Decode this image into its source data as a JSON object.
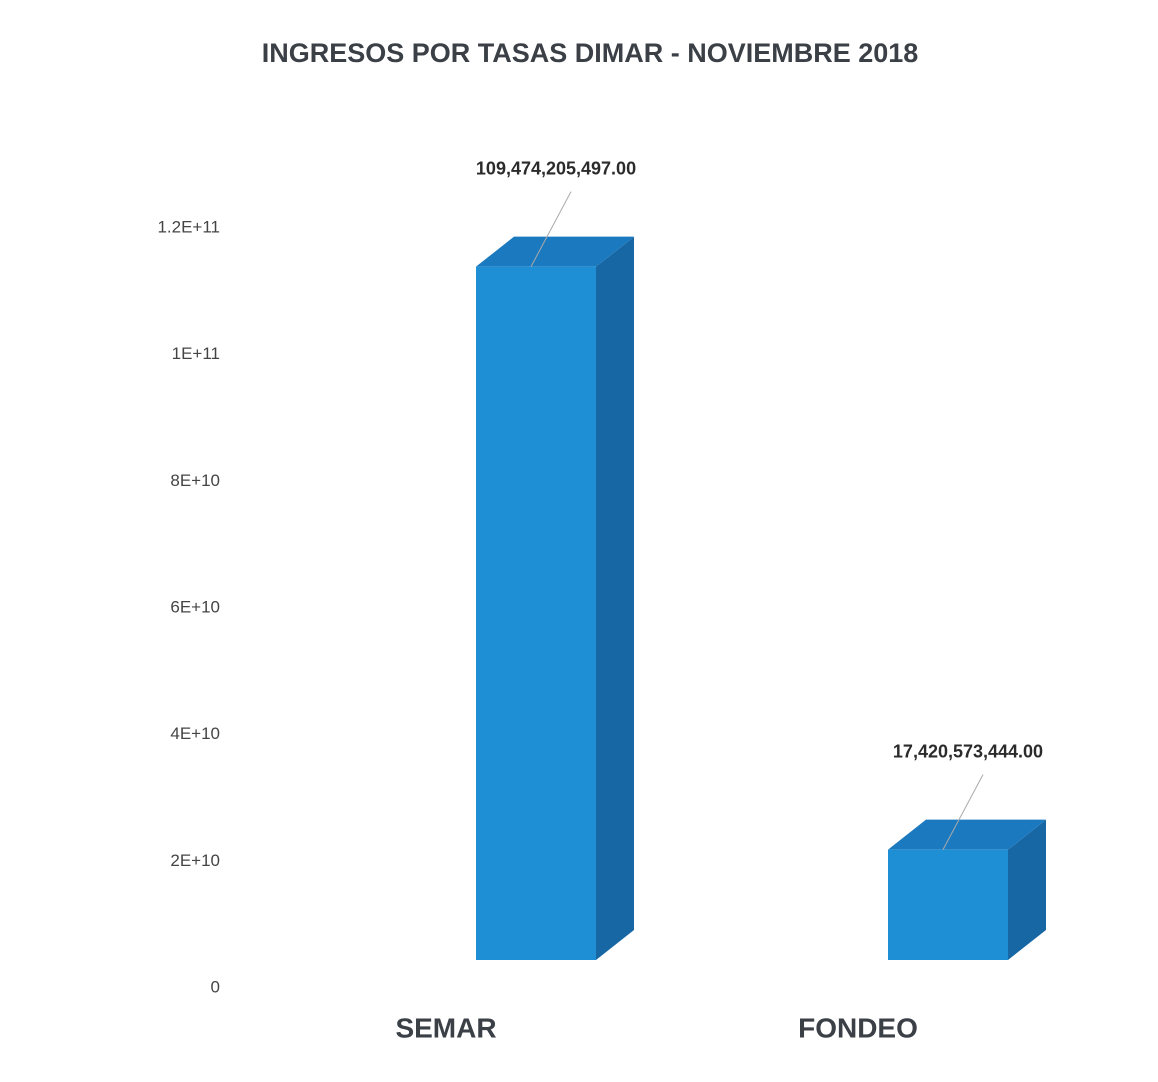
{
  "chart_data": {
    "type": "bar3d",
    "title": "INGRESOS POR TASAS DIMAR - NOVIEMBRE 2018",
    "categories": [
      "SEMAR",
      "FONDEO"
    ],
    "values": [
      109474205497,
      17420573444
    ],
    "value_labels": [
      "109,474,205,497.00",
      "17,420,573,444.00"
    ],
    "color": "#1e8fd5",
    "ylim": [
      0,
      120000000000
    ],
    "yticks": [
      0,
      {
        "value": 20000000000,
        "label": "2E+10"
      },
      {
        "value": 40000000000,
        "label": "4E+10"
      },
      {
        "value": 60000000000,
        "label": "6E+10"
      },
      {
        "value": 80000000000,
        "label": "8E+10"
      },
      {
        "value": 100000000000,
        "label": "1E+11"
      },
      {
        "value": 120000000000,
        "label": "1.2E+11"
      }
    ],
    "grid": false
  }
}
